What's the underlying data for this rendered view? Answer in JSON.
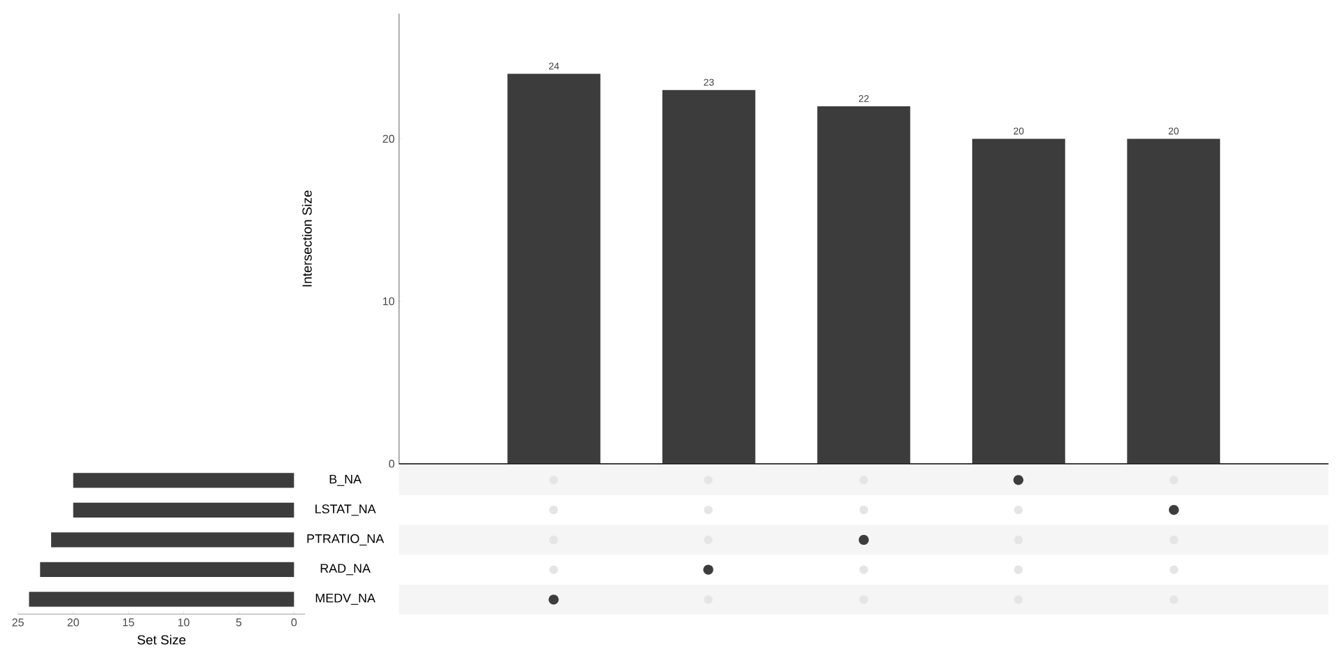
{
  "chart_data": [
    {
      "type": "bar",
      "categories": [
        null,
        null,
        null,
        null,
        null
      ],
      "values": [
        24,
        23,
        22,
        20,
        20
      ],
      "color": "#3c3c3c",
      "ylim": [
        0,
        27.7
      ],
      "yticks": [
        0,
        10,
        20
      ],
      "ylabel": "Intersection Size",
      "data_labels": true
    },
    {
      "type": "bar",
      "orientation": "horizontal",
      "categories": [
        "B_NA",
        "LSTAT_NA",
        "PTRATIO_NA",
        "RAD_NA",
        "MEDV_NA"
      ],
      "values": [
        20,
        20,
        22,
        23,
        24
      ],
      "color": "#3c3c3c",
      "xlim": [
        25,
        -1
      ],
      "xticks": [
        25,
        20,
        15,
        10,
        5,
        0
      ],
      "xlabel": "Set Size"
    }
  ]
}
